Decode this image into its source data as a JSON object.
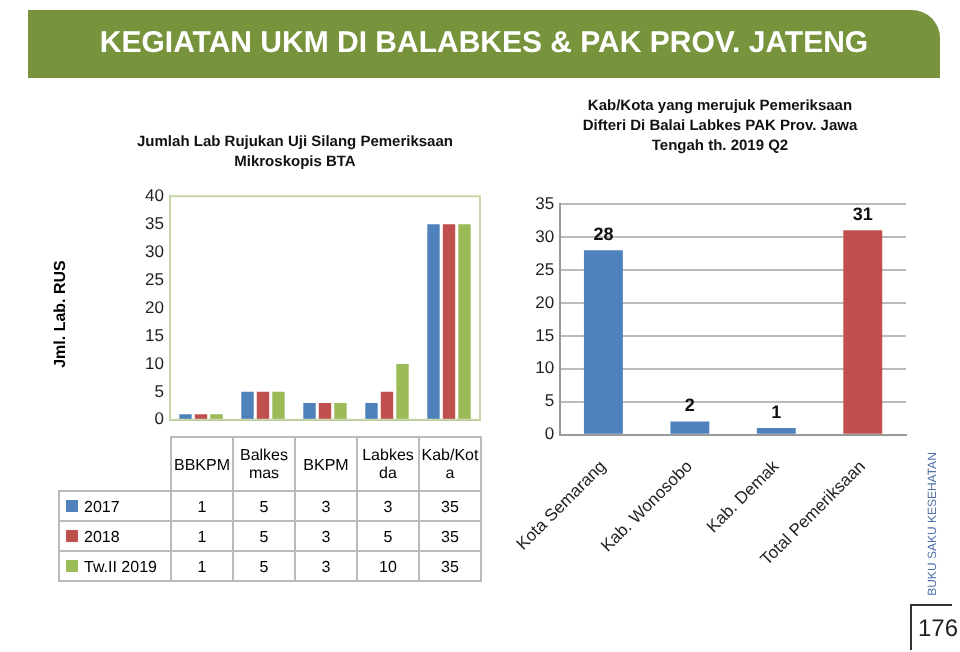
{
  "chart_data": [
    {
      "type": "bar",
      "title": "Jumlah Lab Rujukan Uji Silang Pemeriksaan Mikroskopis BTA",
      "ylabel": "Jml. Lab. RUS",
      "categories": [
        "BBKPM",
        "Balkesmas",
        "BKPM",
        "Labkesda",
        "Kab/Kota"
      ],
      "series": [
        {
          "name": "2017",
          "color": "#4f81bd",
          "values": [
            1,
            5,
            3,
            3,
            35
          ]
        },
        {
          "name": "2018",
          "color": "#c0504d",
          "values": [
            1,
            5,
            3,
            5,
            35
          ]
        },
        {
          "name": "Tw.II 2019",
          "color": "#9bbb59",
          "values": [
            1,
            5,
            3,
            10,
            35
          ]
        }
      ],
      "ylim": [
        0,
        40
      ],
      "yticks": [
        0,
        5,
        10,
        15,
        20,
        25,
        30,
        35,
        40
      ],
      "grid": false,
      "legend": "bottom",
      "data_labels": true
    },
    {
      "type": "bar",
      "title": "Kab/Kota yang merujuk Pemeriksaan Difteri Di Balai Labkes PAK Prov. Jawa Tengah th. 2019 Q2",
      "categories": [
        "Kota Semarang",
        "Kab. Wonosobo",
        "Kab. Demak",
        "Total Pemeriksaan"
      ],
      "values": [
        28,
        2,
        1,
        31
      ],
      "colors": [
        "#4f81bd",
        "#4f81bd",
        "#4f81bd",
        "#c0504d"
      ],
      "ylim": [
        0,
        35
      ],
      "yticks": [
        0,
        5,
        10,
        15,
        20,
        25,
        30,
        35
      ],
      "grid": "y",
      "data_labels": true
    },
    {
      "type": "other",
      "title": "KEGIATAN UKM DI BALABKES & PAK PROV. JATENG",
      "annotations": [
        "BUKU SAKU KESEHATAN",
        "176"
      ]
    }
  ]
}
